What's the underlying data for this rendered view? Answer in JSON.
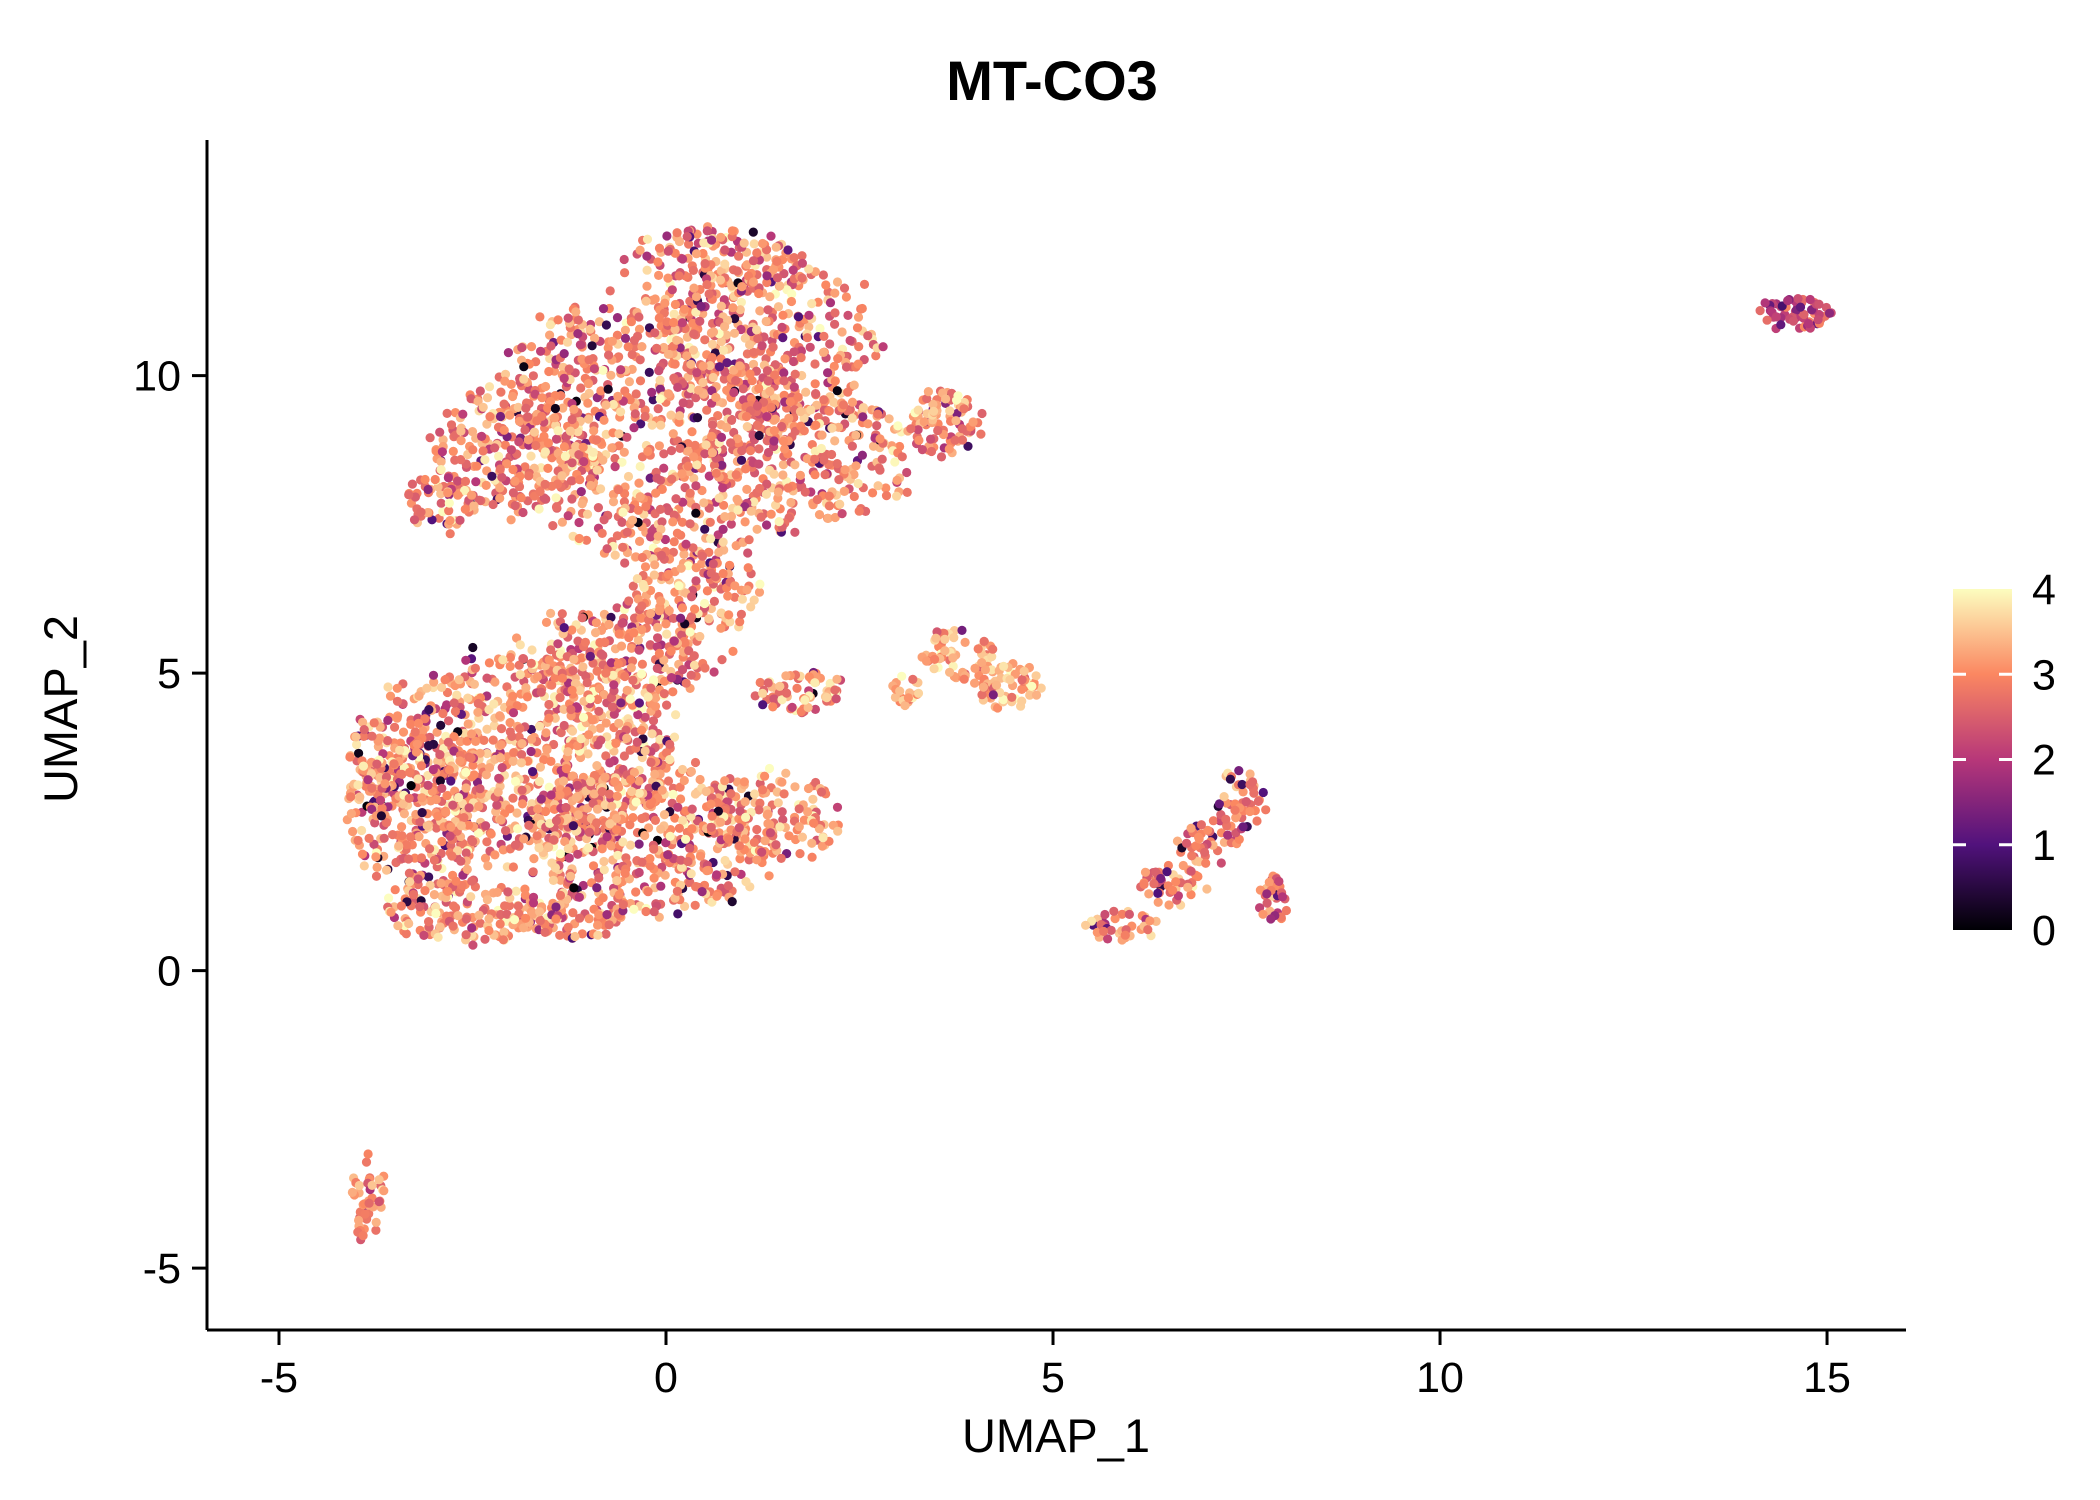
{
  "title": "MT-CO3",
  "axes": {
    "x": {
      "label": "UMAP_1",
      "ticks": [
        -5,
        0,
        5,
        10,
        15
      ]
    },
    "y": {
      "label": "UMAP_2",
      "ticks": [
        -5,
        0,
        5,
        10
      ]
    }
  },
  "legend": {
    "ticks": [
      0,
      1,
      2,
      3,
      4
    ],
    "position": "right",
    "colormap": "magma"
  },
  "chart_data": {
    "type": "scatter",
    "title": "MT-CO3",
    "xlabel": "UMAP_1",
    "ylabel": "UMAP_2",
    "xlim": [
      -5.93,
      16.02
    ],
    "ylim": [
      -6.04,
      13.96
    ],
    "grid": false,
    "legend_position": "right",
    "point_radius_px": 4.6,
    "seed": 42,
    "color_scale": {
      "name": "magma",
      "domain": [
        0,
        4
      ],
      "stops": [
        {
          "t": 0.0,
          "color": "#000004"
        },
        {
          "t": 0.25,
          "color": "#51127c"
        },
        {
          "t": 0.5,
          "color": "#b73779"
        },
        {
          "t": 0.75,
          "color": "#fb8761"
        },
        {
          "t": 1.0,
          "color": "#fcfdbf"
        }
      ]
    },
    "clusters": [
      {
        "name": "upper-large-cluster",
        "value": {
          "mean": 2.95,
          "sd": 0.5,
          "min": 0,
          "max": 4,
          "dark_frac": 0.07,
          "dark_range": [
            0,
            1.9
          ]
        },
        "blobs": [
          {
            "cx": -0.3,
            "cy": 9.6,
            "rx": 2.0,
            "ry": 1.7,
            "n": 600
          },
          {
            "cx": 1.2,
            "cy": 10.6,
            "rx": 1.5,
            "ry": 1.4,
            "n": 350
          },
          {
            "cx": 1.8,
            "cy": 8.6,
            "rx": 1.4,
            "ry": 1.1,
            "n": 300
          },
          {
            "cx": -1.9,
            "cy": 8.7,
            "rx": 1.1,
            "ry": 1.1,
            "n": 250
          },
          {
            "cx": 0.6,
            "cy": 12.0,
            "rx": 1.1,
            "ry": 0.55,
            "n": 120
          },
          {
            "cx": 3.6,
            "cy": 9.2,
            "rx": 0.5,
            "ry": 0.55,
            "n": 90
          },
          {
            "cx": -2.9,
            "cy": 7.9,
            "rx": 0.45,
            "ry": 0.5,
            "n": 60
          },
          {
            "cx": 0.2,
            "cy": 7.4,
            "rx": 1.4,
            "ry": 0.6,
            "n": 160
          }
        ]
      },
      {
        "name": "lower-left-large-cluster",
        "value": {
          "mean": 3.05,
          "sd": 0.5,
          "min": 0,
          "max": 4,
          "dark_frac": 0.07,
          "dark_range": [
            0,
            1.9
          ]
        },
        "blobs": [
          {
            "cx": -1.8,
            "cy": 3.6,
            "rx": 1.9,
            "ry": 1.7,
            "n": 800
          },
          {
            "cx": -3.2,
            "cy": 2.6,
            "rx": 0.9,
            "ry": 1.3,
            "n": 250
          },
          {
            "cx": -0.2,
            "cy": 2.2,
            "rx": 1.6,
            "ry": 1.2,
            "n": 450
          },
          {
            "cx": -2.6,
            "cy": 1.0,
            "rx": 1.0,
            "ry": 0.55,
            "n": 150
          },
          {
            "cx": -1.2,
            "cy": 0.9,
            "rx": 0.8,
            "ry": 0.4,
            "n": 90
          },
          {
            "cx": -0.6,
            "cy": 5.3,
            "rx": 1.3,
            "ry": 0.8,
            "n": 260
          },
          {
            "cx": 0.4,
            "cy": 6.3,
            "rx": 0.9,
            "ry": 0.6,
            "n": 120
          },
          {
            "cx": 1.7,
            "cy": 4.7,
            "rx": 0.6,
            "ry": 0.35,
            "n": 70
          },
          {
            "cx": 1.4,
            "cy": 2.6,
            "rx": 0.9,
            "ry": 0.7,
            "n": 130
          },
          {
            "cx": -3.8,
            "cy": 3.4,
            "rx": 0.3,
            "ry": 0.9,
            "n": 70
          }
        ]
      },
      {
        "name": "small-middle-cluster",
        "value": {
          "mean": 3.3,
          "sd": 0.4,
          "min": 0,
          "max": 4,
          "dark_frac": 0.04,
          "dark_range": [
            0.5,
            2.0
          ]
        },
        "blobs": [
          {
            "cx": 3.8,
            "cy": 5.3,
            "rx": 0.45,
            "ry": 0.45,
            "n": 60
          },
          {
            "cx": 4.4,
            "cy": 4.8,
            "rx": 0.45,
            "ry": 0.4,
            "n": 70
          },
          {
            "cx": 3.1,
            "cy": 4.7,
            "rx": 0.25,
            "ry": 0.3,
            "n": 20
          }
        ]
      },
      {
        "name": "right-diagonal-cluster",
        "value": {
          "mean": 2.9,
          "sd": 0.45,
          "min": 0,
          "max": 4,
          "dark_frac": 0.08,
          "dark_range": [
            0.3,
            2.0
          ]
        },
        "blobs": [
          {
            "cx": 5.9,
            "cy": 0.75,
            "rx": 0.45,
            "ry": 0.3,
            "n": 40
          },
          {
            "cx": 6.5,
            "cy": 1.5,
            "rx": 0.45,
            "ry": 0.45,
            "n": 45
          },
          {
            "cx": 7.0,
            "cy": 2.2,
            "rx": 0.4,
            "ry": 0.45,
            "n": 45
          },
          {
            "cx": 7.4,
            "cy": 2.9,
            "rx": 0.35,
            "ry": 0.5,
            "n": 45
          },
          {
            "cx": 7.85,
            "cy": 1.1,
            "rx": 0.18,
            "ry": 0.5,
            "n": 30
          }
        ]
      },
      {
        "name": "far-right-cluster",
        "value": {
          "mean": 2.3,
          "sd": 0.4,
          "min": 0,
          "max": 4,
          "dark_frac": 0.12,
          "dark_range": [
            0.8,
            1.6
          ]
        },
        "blobs": [
          {
            "cx": 14.6,
            "cy": 11.05,
            "rx": 0.5,
            "ry": 0.25,
            "n": 60
          }
        ]
      },
      {
        "name": "bottom-left-small-cluster",
        "value": {
          "mean": 3.0,
          "sd": 0.35,
          "min": 0,
          "max": 4,
          "dark_frac": 0.03,
          "dark_range": [
            0.8,
            2.0
          ]
        },
        "blobs": [
          {
            "cx": -3.85,
            "cy": -3.85,
            "rx": 0.22,
            "ry": 0.75,
            "n": 45
          }
        ]
      }
    ]
  }
}
